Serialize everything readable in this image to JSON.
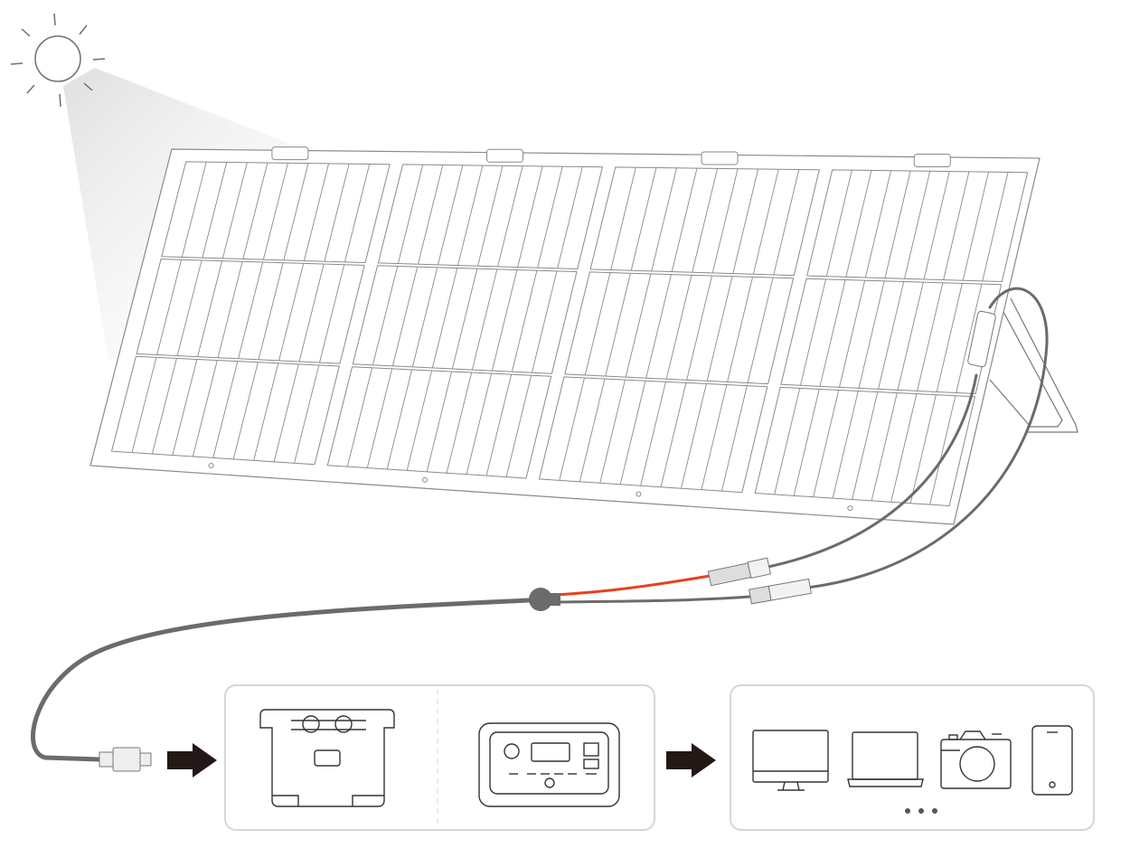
{
  "colors": {
    "outline": "#6e6e6e",
    "panel_line": "#8a8a8a",
    "cable": "#6b6b6b",
    "positive_cable": "#e8401c",
    "arrow": "#231815",
    "box_border": "#d6d6d6",
    "light_beam": "#e6e6e6"
  },
  "diagram": {
    "sun": "sun-icon",
    "panel": "foldable-solar-panel",
    "panel_sections": 4,
    "connectors": [
      "mc4-connector-positive",
      "mc4-connector-negative"
    ],
    "output_plug": "xt60-plug-icon",
    "power_stations": [
      "power-station-back-icon",
      "power-station-front-icon"
    ],
    "devices": [
      "monitor-icon",
      "laptop-icon",
      "camera-icon",
      "phone-icon",
      "more-dots-icon"
    ]
  }
}
